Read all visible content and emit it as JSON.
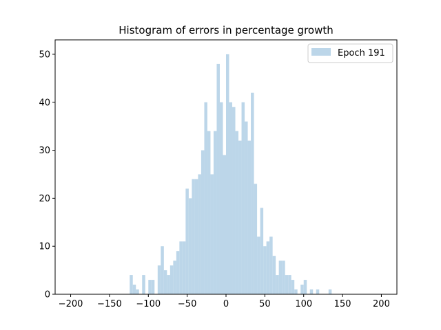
{
  "chart_data": {
    "type": "bar",
    "title": "Histogram of errors in percentage growth",
    "xlabel": "",
    "ylabel": "",
    "xlim": [
      -220,
      220
    ],
    "ylim": [
      0,
      53
    ],
    "x_ticks": [
      -200,
      -150,
      -100,
      -50,
      0,
      50,
      100,
      150,
      200
    ],
    "y_ticks": [
      0,
      10,
      20,
      30,
      40,
      50
    ],
    "bin_width": 4,
    "grid": false,
    "legend_position": "top-right",
    "series": [
      {
        "name": "Epoch 191",
        "color": "#bcd6e9",
        "bins": [
          {
            "x0": -124,
            "count": 4
          },
          {
            "x0": -120,
            "count": 2
          },
          {
            "x0": -116,
            "count": 1
          },
          {
            "x0": -108,
            "count": 4
          },
          {
            "x0": -100,
            "count": 3
          },
          {
            "x0": -96,
            "count": 3
          },
          {
            "x0": -88,
            "count": 6
          },
          {
            "x0": -84,
            "count": 10
          },
          {
            "x0": -80,
            "count": 5
          },
          {
            "x0": -76,
            "count": 4
          },
          {
            "x0": -72,
            "count": 6
          },
          {
            "x0": -68,
            "count": 7
          },
          {
            "x0": -64,
            "count": 9
          },
          {
            "x0": -60,
            "count": 11
          },
          {
            "x0": -56,
            "count": 11
          },
          {
            "x0": -52,
            "count": 22
          },
          {
            "x0": -48,
            "count": 20
          },
          {
            "x0": -44,
            "count": 24
          },
          {
            "x0": -40,
            "count": 24
          },
          {
            "x0": -36,
            "count": 25
          },
          {
            "x0": -32,
            "count": 30
          },
          {
            "x0": -28,
            "count": 40
          },
          {
            "x0": -24,
            "count": 34
          },
          {
            "x0": -20,
            "count": 25
          },
          {
            "x0": -16,
            "count": 34
          },
          {
            "x0": -12,
            "count": 48
          },
          {
            "x0": -8,
            "count": 40
          },
          {
            "x0": -4,
            "count": 29
          },
          {
            "x0": 0,
            "count": 50
          },
          {
            "x0": 4,
            "count": 40
          },
          {
            "x0": 8,
            "count": 39
          },
          {
            "x0": 12,
            "count": 34
          },
          {
            "x0": 16,
            "count": 32
          },
          {
            "x0": 20,
            "count": 40
          },
          {
            "x0": 24,
            "count": 36
          },
          {
            "x0": 28,
            "count": 32
          },
          {
            "x0": 32,
            "count": 42
          },
          {
            "x0": 36,
            "count": 23
          },
          {
            "x0": 40,
            "count": 12
          },
          {
            "x0": 44,
            "count": 18
          },
          {
            "x0": 48,
            "count": 10
          },
          {
            "x0": 52,
            "count": 11
          },
          {
            "x0": 56,
            "count": 12
          },
          {
            "x0": 60,
            "count": 8
          },
          {
            "x0": 64,
            "count": 4
          },
          {
            "x0": 68,
            "count": 7
          },
          {
            "x0": 72,
            "count": 7
          },
          {
            "x0": 76,
            "count": 4
          },
          {
            "x0": 80,
            "count": 4
          },
          {
            "x0": 84,
            "count": 3
          },
          {
            "x0": 88,
            "count": 1
          },
          {
            "x0": 96,
            "count": 2
          },
          {
            "x0": 100,
            "count": 3
          },
          {
            "x0": 108,
            "count": 1
          },
          {
            "x0": 116,
            "count": 1
          },
          {
            "x0": 132,
            "count": 1
          }
        ]
      }
    ]
  }
}
